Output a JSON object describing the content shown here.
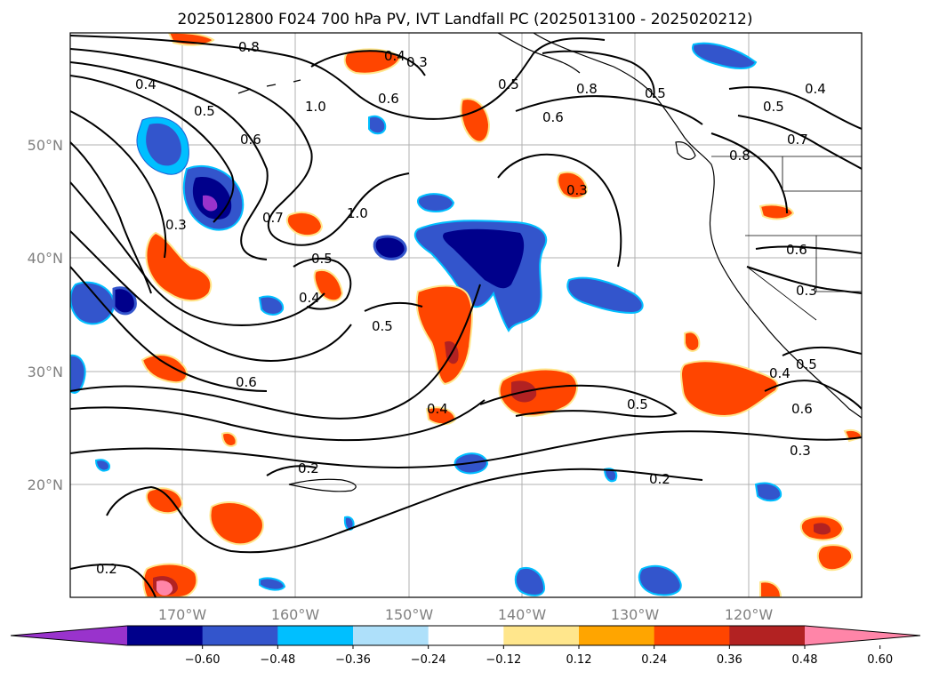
{
  "title": "2025012800 F024 700 hPa PV, IVT Landfall PC (2025013100 - 2025020212)",
  "map": {
    "lat_labels": [
      "50°N",
      "40°N",
      "30°N",
      "20°N"
    ],
    "lon_labels": [
      "170°W",
      "160°W",
      "150°W",
      "140°W",
      "130°W",
      "120°W"
    ],
    "contour_labels": [
      "0.8",
      "0.4",
      "0.3",
      "0.4",
      "0.5",
      "0.6",
      "1.0",
      "0.6",
      "0.5",
      "0.8",
      "0.5",
      "0.6",
      "0.4",
      "0.5",
      "0.7",
      "0.8",
      "0.3",
      "0.3",
      "0.7",
      "1.0",
      "0.5",
      "0.4",
      "0.5",
      "0.6",
      "0.4",
      "0.5",
      "0.3",
      "0.6",
      "0.4",
      "0.5",
      "0.6",
      "0.3",
      "0.2",
      "0.2",
      "0.2"
    ]
  },
  "colorbar": {
    "tick_labels": [
      "−0.60",
      "−0.48",
      "−0.36",
      "−0.24",
      "−0.12",
      "0.12",
      "0.24",
      "0.36",
      "0.48",
      "0.60"
    ],
    "colors": [
      "#9933cc",
      "#00008b",
      "#3355cc",
      "#00bfff",
      "#aee0fa",
      "#ffffff",
      "#ffe68c",
      "#ffa500",
      "#ff4500",
      "#b22222",
      "#ff85a8"
    ]
  }
}
